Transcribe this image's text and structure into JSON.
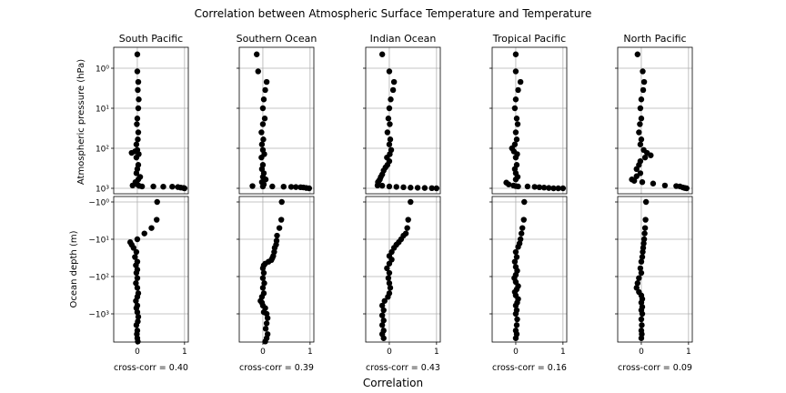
{
  "figure": {
    "title": "Correlation between Atmospheric Surface Temperature and Temperature",
    "xlabel": "Correlation",
    "ylabel_top": "Atmospheric pressure (hPa)",
    "ylabel_bottom": "Ocean depth (m)",
    "xticks": [
      "0",
      "1"
    ],
    "top_yticks": [
      "10⁰",
      "10¹",
      "10²",
      "10³"
    ],
    "bottom_yticks": [
      "−10⁰",
      "−10¹",
      "−10²",
      "−10³"
    ]
  },
  "chart_data": [
    {
      "type": "scatter",
      "title": "South Pacific",
      "caption": "cross-corr = 0.40",
      "xlim": [
        -0.5,
        1.08
      ],
      "atmosphere": [
        [
          0.0,
          0.45
        ],
        [
          0.0,
          1.2
        ],
        [
          0.02,
          2.2
        ],
        [
          0.01,
          3.5
        ],
        [
          0.03,
          6
        ],
        [
          0.02,
          10
        ],
        [
          0.0,
          18
        ],
        [
          -0.01,
          25
        ],
        [
          0.02,
          40
        ],
        [
          0.01,
          60
        ],
        [
          -0.02,
          80
        ],
        [
          0.0,
          110
        ],
        [
          -0.05,
          120
        ],
        [
          -0.12,
          130
        ],
        [
          0.03,
          140
        ],
        [
          -0.02,
          170
        ],
        [
          0.02,
          260
        ],
        [
          0.0,
          330
        ],
        [
          -0.02,
          420
        ],
        [
          0.06,
          520
        ],
        [
          0.02,
          600
        ],
        [
          -0.04,
          700
        ],
        [
          0.0,
          800
        ],
        [
          -0.1,
          850
        ],
        [
          0.04,
          870
        ],
        [
          0.1,
          900
        ],
        [
          0.34,
          900
        ],
        [
          0.55,
          910
        ],
        [
          0.74,
          910
        ],
        [
          0.86,
          930
        ],
        [
          0.92,
          960
        ],
        [
          0.98,
          980
        ],
        [
          1.0,
          1000
        ]
      ],
      "ocean": [
        [
          0.42,
          1
        ],
        [
          0.41,
          3
        ],
        [
          0.3,
          5
        ],
        [
          0.15,
          7
        ],
        [
          0.0,
          10
        ],
        [
          -0.15,
          12
        ],
        [
          -0.12,
          14
        ],
        [
          -0.08,
          17
        ],
        [
          -0.02,
          22
        ],
        [
          -0.05,
          30
        ],
        [
          0.0,
          40
        ],
        [
          -0.03,
          50
        ],
        [
          0.0,
          65
        ],
        [
          -0.02,
          80
        ],
        [
          0.0,
          110
        ],
        [
          -0.03,
          150
        ],
        [
          0.0,
          200
        ],
        [
          0.02,
          280
        ],
        [
          0.0,
          350
        ],
        [
          -0.03,
          450
        ],
        [
          0.0,
          600
        ],
        [
          -0.02,
          700
        ],
        [
          0.0,
          900
        ],
        [
          0.02,
          1200
        ],
        [
          0.01,
          1600
        ],
        [
          -0.02,
          2000
        ],
        [
          0.0,
          2800
        ],
        [
          -0.01,
          3500
        ],
        [
          0.0,
          4500
        ],
        [
          0.01,
          5500
        ]
      ]
    },
    {
      "type": "scatter",
      "title": "Southern Ocean",
      "caption": "cross-corr = 0.39",
      "xlim": [
        -0.5,
        1.08
      ],
      "atmosphere": [
        [
          -0.13,
          0.45
        ],
        [
          -0.1,
          1.2
        ],
        [
          0.08,
          2.2
        ],
        [
          0.05,
          3.5
        ],
        [
          0.02,
          6
        ],
        [
          0.0,
          10
        ],
        [
          0.04,
          18
        ],
        [
          0.0,
          25
        ],
        [
          -0.03,
          40
        ],
        [
          0.01,
          60
        ],
        [
          -0.02,
          80
        ],
        [
          0.0,
          110
        ],
        [
          0.03,
          140
        ],
        [
          -0.03,
          170
        ],
        [
          0.0,
          260
        ],
        [
          -0.02,
          330
        ],
        [
          0.02,
          420
        ],
        [
          0.0,
          520
        ],
        [
          0.06,
          600
        ],
        [
          -0.02,
          700
        ],
        [
          0.02,
          800
        ],
        [
          -0.22,
          880
        ],
        [
          0.0,
          900
        ],
        [
          0.2,
          900
        ],
        [
          0.44,
          910
        ],
        [
          0.6,
          920
        ],
        [
          0.7,
          930
        ],
        [
          0.8,
          940
        ],
        [
          0.86,
          950
        ],
        [
          0.92,
          980
        ],
        [
          0.98,
          1000
        ]
      ],
      "ocean": [
        [
          0.4,
          1
        ],
        [
          0.39,
          3
        ],
        [
          0.35,
          5
        ],
        [
          0.3,
          8
        ],
        [
          0.29,
          11
        ],
        [
          0.28,
          14
        ],
        [
          0.25,
          17
        ],
        [
          0.24,
          22
        ],
        [
          0.22,
          28
        ],
        [
          0.2,
          32
        ],
        [
          0.18,
          36
        ],
        [
          0.12,
          40
        ],
        [
          0.05,
          45
        ],
        [
          0.02,
          50
        ],
        [
          0.0,
          60
        ],
        [
          0.02,
          80
        ],
        [
          0.0,
          110
        ],
        [
          0.03,
          150
        ],
        [
          0.0,
          200
        ],
        [
          0.02,
          280
        ],
        [
          -0.02,
          350
        ],
        [
          -0.05,
          450
        ],
        [
          -0.02,
          500
        ],
        [
          0.0,
          600
        ],
        [
          0.05,
          700
        ],
        [
          0.02,
          900
        ],
        [
          0.08,
          1000
        ],
        [
          0.1,
          1300
        ],
        [
          0.08,
          1800
        ],
        [
          0.06,
          2500
        ],
        [
          0.1,
          3500
        ],
        [
          0.08,
          4500
        ],
        [
          0.05,
          5500
        ]
      ]
    },
    {
      "type": "scatter",
      "title": "Indian Ocean",
      "caption": "cross-corr = 0.43",
      "xlim": [
        -0.5,
        1.08
      ],
      "atmosphere": [
        [
          -0.15,
          0.45
        ],
        [
          0.0,
          1.2
        ],
        [
          0.1,
          2.2
        ],
        [
          0.08,
          3.5
        ],
        [
          0.03,
          6
        ],
        [
          0.0,
          10
        ],
        [
          -0.02,
          18
        ],
        [
          0.01,
          25
        ],
        [
          -0.04,
          40
        ],
        [
          0.02,
          60
        ],
        [
          0.0,
          80
        ],
        [
          0.04,
          110
        ],
        [
          0.01,
          140
        ],
        [
          -0.05,
          170
        ],
        [
          0.0,
          210
        ],
        [
          -0.04,
          260
        ],
        [
          -0.08,
          300
        ],
        [
          -0.12,
          360
        ],
        [
          -0.15,
          450
        ],
        [
          -0.18,
          520
        ],
        [
          -0.2,
          600
        ],
        [
          -0.22,
          650
        ],
        [
          -0.24,
          700
        ],
        [
          -0.25,
          850
        ],
        [
          -0.15,
          860
        ],
        [
          0.0,
          900
        ],
        [
          0.15,
          920
        ],
        [
          0.3,
          940
        ],
        [
          0.45,
          960
        ],
        [
          0.6,
          970
        ],
        [
          0.75,
          980
        ],
        [
          0.9,
          990
        ],
        [
          1.0,
          1000
        ]
      ],
      "ocean": [
        [
          0.45,
          1
        ],
        [
          0.4,
          3
        ],
        [
          0.38,
          5
        ],
        [
          0.35,
          7
        ],
        [
          0.3,
          8
        ],
        [
          0.25,
          10
        ],
        [
          0.2,
          12
        ],
        [
          0.15,
          14
        ],
        [
          0.1,
          17
        ],
        [
          0.05,
          22
        ],
        [
          0.0,
          28
        ],
        [
          0.05,
          35
        ],
        [
          0.0,
          45
        ],
        [
          -0.05,
          60
        ],
        [
          0.0,
          80
        ],
        [
          -0.02,
          110
        ],
        [
          0.0,
          150
        ],
        [
          0.02,
          200
        ],
        [
          0.0,
          280
        ],
        [
          -0.03,
          350
        ],
        [
          -0.1,
          450
        ],
        [
          -0.15,
          600
        ],
        [
          -0.12,
          800
        ],
        [
          -0.15,
          1100
        ],
        [
          -0.12,
          1500
        ],
        [
          -0.15,
          2000
        ],
        [
          -0.12,
          2800
        ],
        [
          -0.15,
          3500
        ],
        [
          -0.12,
          4500
        ]
      ]
    },
    {
      "type": "scatter",
      "title": "Tropical Pacific",
      "caption": "cross-corr = 0.16",
      "xlim": [
        -0.5,
        1.08
      ],
      "atmosphere": [
        [
          0.0,
          0.45
        ],
        [
          0.0,
          1.2
        ],
        [
          0.1,
          2.2
        ],
        [
          0.05,
          3.5
        ],
        [
          0.0,
          6
        ],
        [
          -0.02,
          10
        ],
        [
          0.02,
          18
        ],
        [
          0.04,
          25
        ],
        [
          0.0,
          40
        ],
        [
          0.02,
          60
        ],
        [
          -0.02,
          80
        ],
        [
          -0.08,
          100
        ],
        [
          -0.04,
          120
        ],
        [
          0.03,
          140
        ],
        [
          0.0,
          170
        ],
        [
          0.02,
          260
        ],
        [
          -0.02,
          330
        ],
        [
          0.0,
          420
        ],
        [
          0.04,
          520
        ],
        [
          0.0,
          600
        ],
        [
          -0.2,
          720
        ],
        [
          -0.15,
          800
        ],
        [
          -0.05,
          850
        ],
        [
          0.0,
          880
        ],
        [
          0.05,
          900
        ],
        [
          0.25,
          900
        ],
        [
          0.4,
          920
        ],
        [
          0.5,
          940
        ],
        [
          0.6,
          960
        ],
        [
          0.7,
          980
        ],
        [
          0.8,
          1000
        ],
        [
          0.9,
          1000
        ],
        [
          1.0,
          1000
        ]
      ],
      "ocean": [
        [
          0.18,
          1
        ],
        [
          0.17,
          3
        ],
        [
          0.14,
          5
        ],
        [
          0.12,
          7
        ],
        [
          0.1,
          10
        ],
        [
          0.08,
          13
        ],
        [
          0.05,
          16
        ],
        [
          0.0,
          22
        ],
        [
          0.02,
          30
        ],
        [
          -0.02,
          40
        ],
        [
          0.0,
          55
        ],
        [
          0.03,
          70
        ],
        [
          0.0,
          90
        ],
        [
          -0.03,
          110
        ],
        [
          0.0,
          140
        ],
        [
          0.05,
          180
        ],
        [
          0.02,
          220
        ],
        [
          -0.02,
          260
        ],
        [
          0.0,
          320
        ],
        [
          0.05,
          400
        ],
        [
          0.03,
          500
        ],
        [
          0.0,
          600
        ],
        [
          0.02,
          800
        ],
        [
          0.0,
          1000
        ],
        [
          0.03,
          1400
        ],
        [
          0.02,
          2000
        ],
        [
          0.0,
          2800
        ],
        [
          0.02,
          3500
        ],
        [
          0.0,
          4500
        ]
      ]
    },
    {
      "type": "scatter",
      "title": "North Pacific",
      "caption": "cross-corr = 0.09",
      "xlim": [
        -0.5,
        1.08
      ],
      "atmosphere": [
        [
          -0.08,
          0.45
        ],
        [
          0.03,
          1.2
        ],
        [
          0.06,
          2.2
        ],
        [
          0.04,
          3.5
        ],
        [
          0.0,
          6
        ],
        [
          -0.02,
          10
        ],
        [
          0.0,
          18
        ],
        [
          -0.03,
          25
        ],
        [
          -0.05,
          40
        ],
        [
          0.0,
          60
        ],
        [
          -0.02,
          80
        ],
        [
          0.05,
          110
        ],
        [
          0.12,
          130
        ],
        [
          0.2,
          150
        ],
        [
          0.08,
          170
        ],
        [
          -0.02,
          210
        ],
        [
          -0.05,
          260
        ],
        [
          -0.1,
          330
        ],
        [
          -0.02,
          420
        ],
        [
          -0.1,
          500
        ],
        [
          -0.2,
          600
        ],
        [
          -0.15,
          650
        ],
        [
          0.02,
          700
        ],
        [
          0.25,
          760
        ],
        [
          0.5,
          850
        ],
        [
          0.74,
          880
        ],
        [
          0.82,
          900
        ],
        [
          0.88,
          950
        ],
        [
          0.92,
          980
        ],
        [
          0.96,
          1000
        ]
      ],
      "ocean": [
        [
          0.1,
          1
        ],
        [
          0.09,
          3
        ],
        [
          0.08,
          5
        ],
        [
          0.07,
          7
        ],
        [
          0.06,
          10
        ],
        [
          0.05,
          13
        ],
        [
          0.04,
          17
        ],
        [
          0.03,
          22
        ],
        [
          0.02,
          30
        ],
        [
          0.0,
          40
        ],
        [
          -0.02,
          60
        ],
        [
          0.0,
          80
        ],
        [
          -0.05,
          110
        ],
        [
          -0.08,
          150
        ],
        [
          -0.1,
          200
        ],
        [
          -0.05,
          260
        ],
        [
          0.0,
          320
        ],
        [
          0.02,
          400
        ],
        [
          0.0,
          500
        ],
        [
          0.02,
          650
        ],
        [
          0.0,
          800
        ],
        [
          0.02,
          1000
        ],
        [
          0.0,
          1400
        ],
        [
          0.01,
          2000
        ],
        [
          0.0,
          2800
        ],
        [
          0.01,
          3500
        ],
        [
          0.0,
          4500
        ]
      ]
    }
  ]
}
